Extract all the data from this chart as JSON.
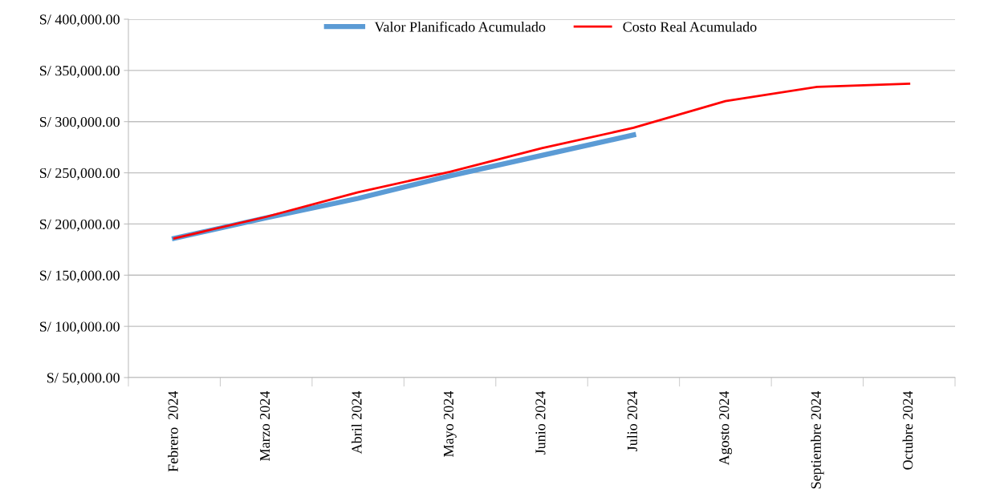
{
  "chart_data": {
    "type": "line",
    "categories": [
      "Febrero  2024",
      "Marzo 2024",
      "Abril 2024",
      "Mayo 2024",
      "Junio 2024",
      "Julio 2024",
      "Agosto 2024",
      "Septiembre 2024",
      "Octubre 2024"
    ],
    "series": [
      {
        "name": "Valor Planificado Acumulado",
        "color": "#5b9bd5",
        "values": [
          186000,
          206000,
          225000,
          247000,
          267000,
          287000,
          null,
          null,
          null
        ]
      },
      {
        "name": "Costo Real Acumulado",
        "color": "#ff0000",
        "values": [
          186000,
          207000,
          231000,
          251000,
          274000,
          294000,
          320000,
          334000,
          337000
        ]
      }
    ],
    "ylim": [
      50000,
      400000
    ],
    "yticks": [
      {
        "value": 50000,
        "label": "S/ 50,000.00"
      },
      {
        "value": 100000,
        "label": "S/ 100,000.00"
      },
      {
        "value": 150000,
        "label": "S/ 150,000.00"
      },
      {
        "value": 200000,
        "label": "S/ 200,000.00"
      },
      {
        "value": 250000,
        "label": "S/ 250,000.00"
      },
      {
        "value": 300000,
        "label": "S/ 300,000.00"
      },
      {
        "value": 350000,
        "label": "S/ 350,000.00"
      },
      {
        "value": 400000,
        "label": "S/ 400,000.00"
      }
    ],
    "grid": "y",
    "legend": "top",
    "marker": "none",
    "line_style": "solid"
  }
}
